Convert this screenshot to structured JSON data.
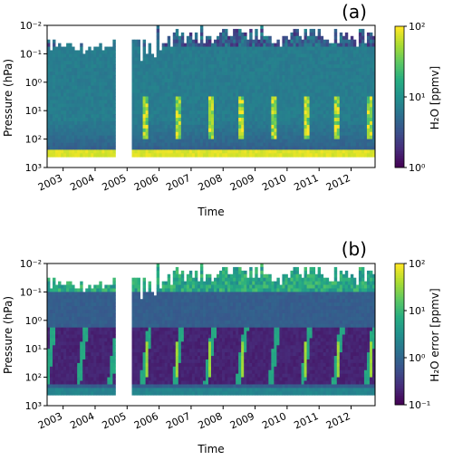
{
  "chart_data": [
    {
      "type": "heatmap",
      "panel_label": "(a)",
      "xlabel": "Time",
      "ylabel": "Pressure (hPa)",
      "x_ticks": [
        "2003",
        "2004",
        "2005",
        "2006",
        "2007",
        "2008",
        "2009",
        "2010",
        "2011",
        "2012"
      ],
      "xlim": [
        2002.5,
        2012.75
      ],
      "y_ticks": [
        "10⁻²",
        "10⁻¹",
        "10⁰",
        "10¹",
        "10²",
        "10³"
      ],
      "ylim": [
        0.01,
        1000
      ],
      "y_scale": "log",
      "y_inverted": true,
      "data_gap": [
        2004.6,
        2005.15
      ],
      "colorbar": {
        "label": "H₂O [ppmv]",
        "scale": "log",
        "range": [
          1,
          100
        ],
        "ticks": [
          "10⁰",
          "10¹",
          "10²"
        ],
        "colormap": "viridis"
      }
    },
    {
      "type": "heatmap",
      "panel_label": "(b)",
      "xlabel": "Time",
      "ylabel": "Pressure (hPa)",
      "x_ticks": [
        "2003",
        "2004",
        "2005",
        "2006",
        "2007",
        "2008",
        "2009",
        "2010",
        "2011",
        "2012"
      ],
      "xlim": [
        2002.5,
        2012.75
      ],
      "y_ticks": [
        "10⁻²",
        "10⁻¹",
        "10⁰",
        "10¹",
        "10²",
        "10³"
      ],
      "ylim": [
        0.01,
        1000
      ],
      "y_scale": "log",
      "y_inverted": true,
      "data_gap": [
        2004.6,
        2005.15
      ],
      "colorbar": {
        "label": "H₂O error [ppmv]",
        "scale": "log",
        "range": [
          0.1,
          100
        ],
        "ticks": [
          "10⁻¹",
          "10⁰",
          "10¹",
          "10²"
        ],
        "colormap": "viridis"
      }
    }
  ]
}
